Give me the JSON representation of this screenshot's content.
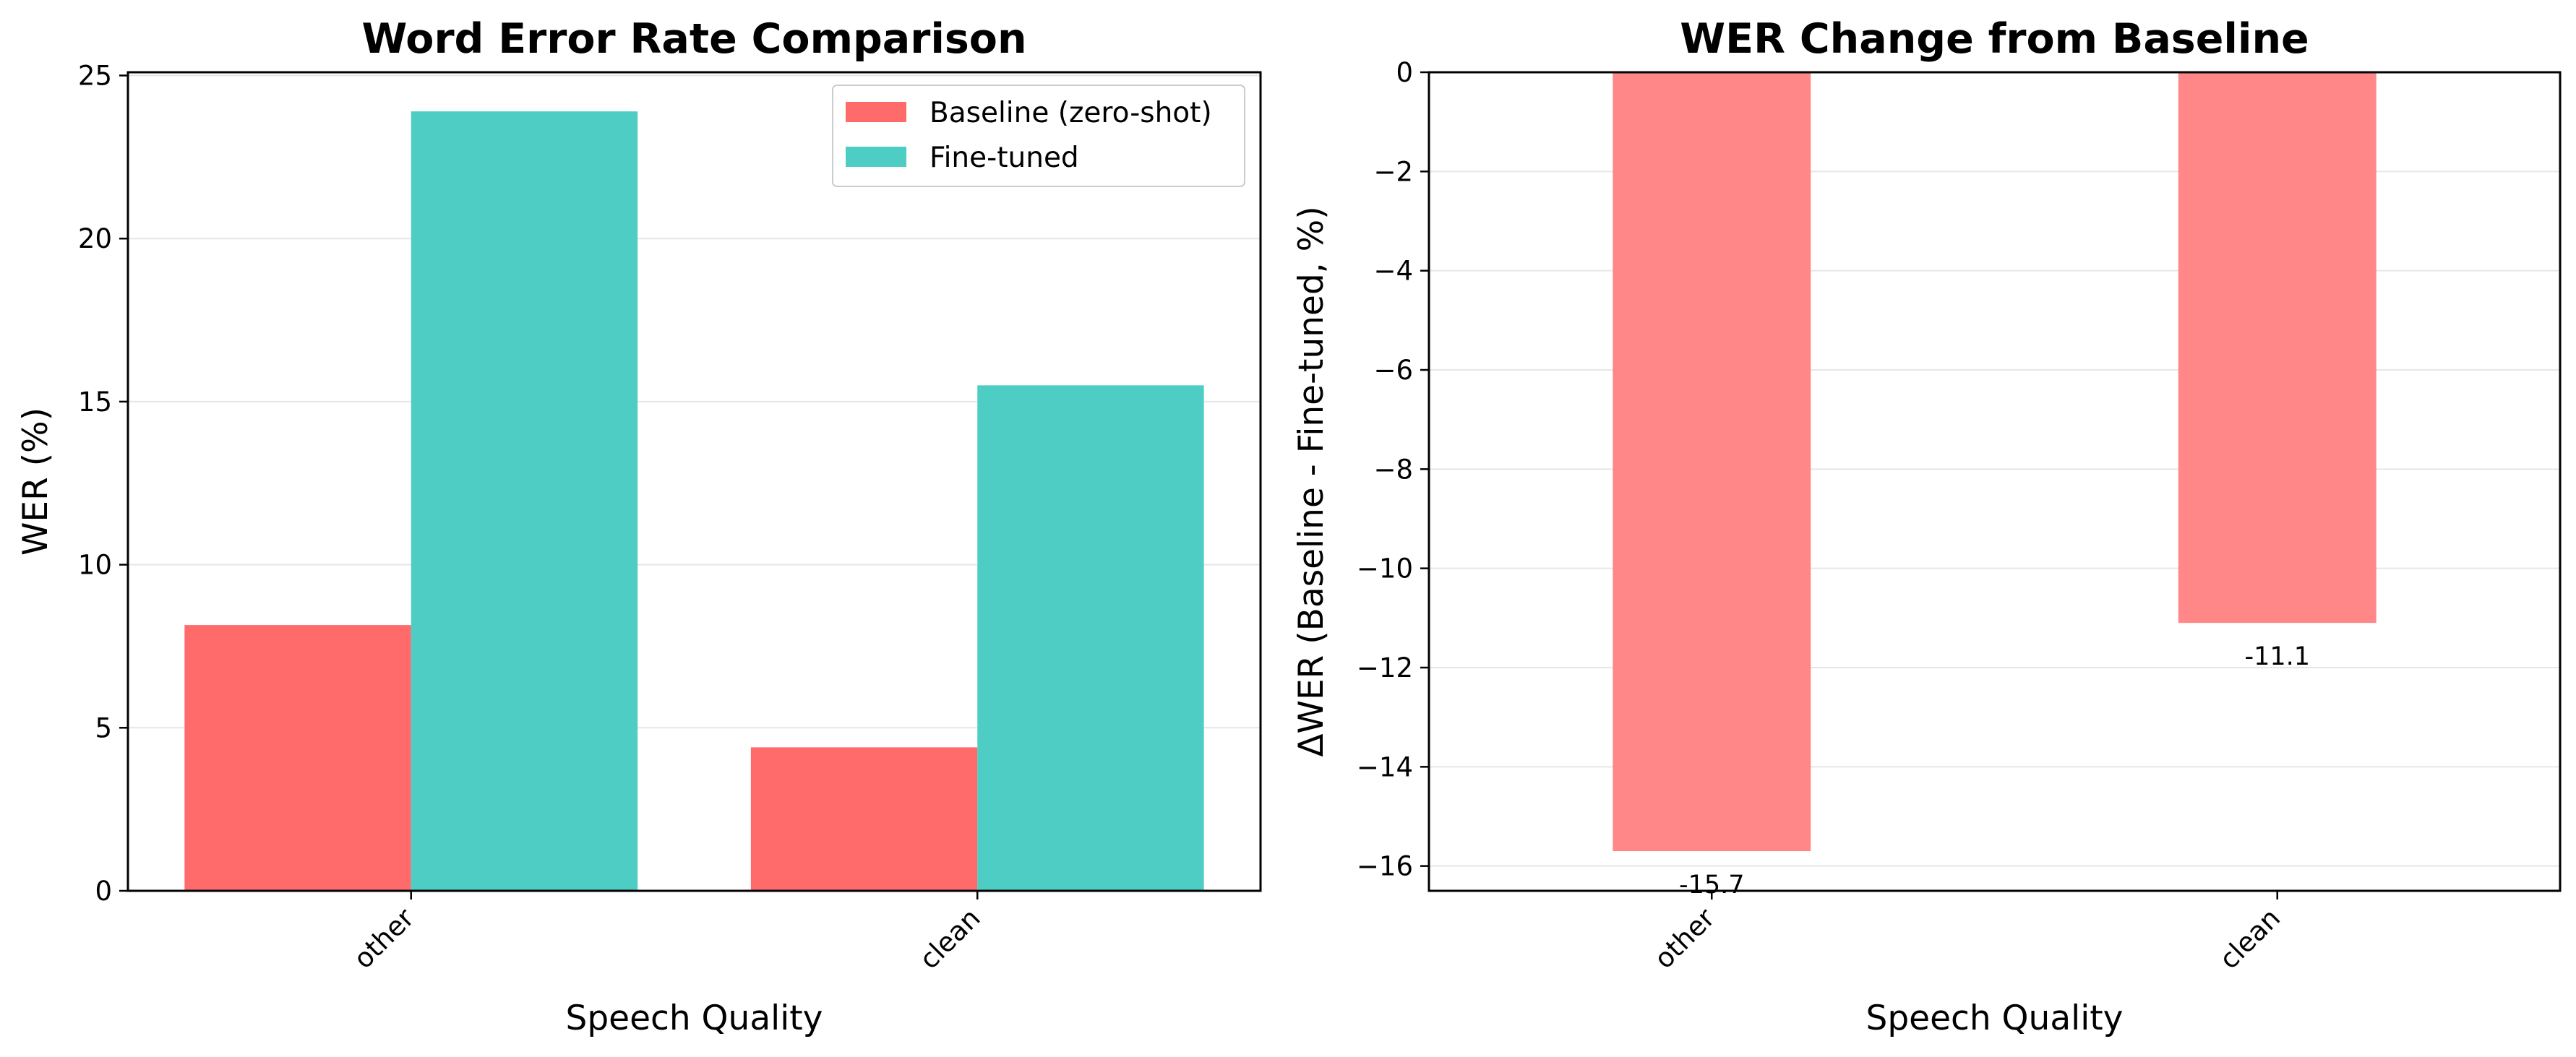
{
  "chart_data": [
    {
      "type": "bar",
      "title": "Word Error Rate Comparison",
      "xlabel": "Speech Quality",
      "ylabel": "WER (%)",
      "categories": [
        "other",
        "clean"
      ],
      "series": [
        {
          "name": "Baseline (zero-shot)",
          "values": [
            8.15,
            4.4
          ],
          "color": "#ff6b6b"
        },
        {
          "name": "Fine-tuned",
          "values": [
            23.9,
            15.5
          ],
          "color": "#4ecdc4"
        }
      ],
      "ylim": [
        0,
        25.1
      ],
      "yticks": [
        0,
        5,
        10,
        15,
        20,
        25
      ],
      "grid": "y",
      "legend": "top-right"
    },
    {
      "type": "bar",
      "title": "WER Change from Baseline",
      "xlabel": "Speech Quality",
      "ylabel": "ΔWER (Baseline - Fine-tuned, %)",
      "categories": [
        "other",
        "clean"
      ],
      "series": [
        {
          "values": [
            -15.7,
            -11.1
          ],
          "color": "#ff8787",
          "labels": [
            "-15.7",
            "-11.1"
          ]
        }
      ],
      "ylim": [
        -16.5,
        0
      ],
      "yticks": [
        0,
        -2,
        -4,
        -6,
        -8,
        -10,
        -12,
        -14,
        -16
      ],
      "grid": "y"
    }
  ]
}
